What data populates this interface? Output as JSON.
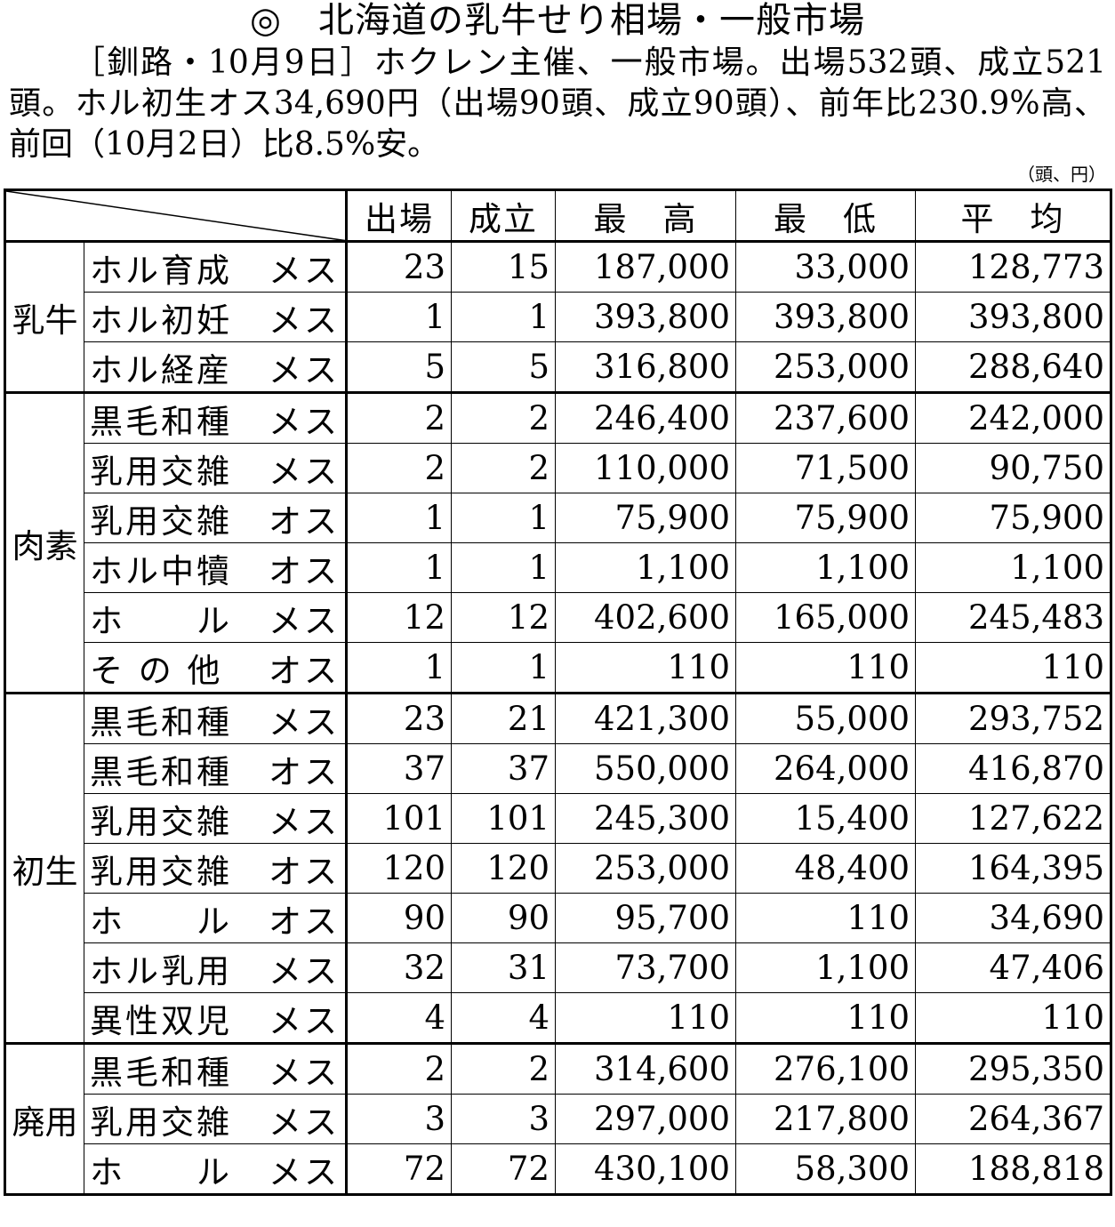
{
  "title": "◎　北海道の乳牛せり相場・一般市場",
  "lead": "［釧路・10月9日］ホクレン主催、一般市場。出場532頭、成立521頭。ホル初生オス34,690円（出場90頭、成立90頭）、前年比230.9%高、前回（10月2日）比8.5%安。",
  "unit": "（頭、円）",
  "table": {
    "header": [
      "出場",
      "成立",
      "最　高",
      "最　低",
      "平　均"
    ],
    "groups": [
      {
        "label": "乳牛",
        "rows": [
          [
            "ホル育成",
            "メス",
            "23",
            "15",
            "187,000",
            "33,000",
            "128,773"
          ],
          [
            "ホル初妊",
            "メス",
            "1",
            "1",
            "393,800",
            "393,800",
            "393,800"
          ],
          [
            "ホル経産",
            "メス",
            "5",
            "5",
            "316,800",
            "253,000",
            "288,640"
          ]
        ]
      },
      {
        "label": "肉素",
        "rows": [
          [
            "黒毛和種",
            "メス",
            "2",
            "2",
            "246,400",
            "237,600",
            "242,000"
          ],
          [
            "乳用交雑",
            "メス",
            "2",
            "2",
            "110,000",
            "71,500",
            "90,750"
          ],
          [
            "乳用交雑",
            "オス",
            "1",
            "1",
            "75,900",
            "75,900",
            "75,900"
          ],
          [
            "ホル中犢",
            "オス",
            "1",
            "1",
            "1,100",
            "1,100",
            "1,100"
          ],
          [
            "ホ　　ル",
            "メス",
            "12",
            "12",
            "402,600",
            "165,000",
            "245,483"
          ],
          [
            "そ の 他",
            "オス",
            "1",
            "1",
            "110",
            "110",
            "110"
          ]
        ]
      },
      {
        "label": "初生",
        "rows": [
          [
            "黒毛和種",
            "メス",
            "23",
            "21",
            "421,300",
            "55,000",
            "293,752"
          ],
          [
            "黒毛和種",
            "オス",
            "37",
            "37",
            "550,000",
            "264,000",
            "416,870"
          ],
          [
            "乳用交雑",
            "メス",
            "101",
            "101",
            "245,300",
            "15,400",
            "127,622"
          ],
          [
            "乳用交雑",
            "オス",
            "120",
            "120",
            "253,000",
            "48,400",
            "164,395"
          ],
          [
            "ホ　　ル",
            "オス",
            "90",
            "90",
            "95,700",
            "110",
            "34,690"
          ],
          [
            "ホル乳用",
            "メス",
            "32",
            "31",
            "73,700",
            "1,100",
            "47,406"
          ],
          [
            "異性双児",
            "メス",
            "4",
            "4",
            "110",
            "110",
            "110"
          ]
        ]
      },
      {
        "label": "廃用",
        "rows": [
          [
            "黒毛和種",
            "メス",
            "2",
            "2",
            "314,600",
            "276,100",
            "295,350"
          ],
          [
            "乳用交雑",
            "メス",
            "3",
            "3",
            "297,000",
            "217,800",
            "264,367"
          ],
          [
            "ホ　　ル",
            "メス",
            "72",
            "72",
            "430,100",
            "58,300",
            "188,818"
          ]
        ]
      }
    ]
  }
}
